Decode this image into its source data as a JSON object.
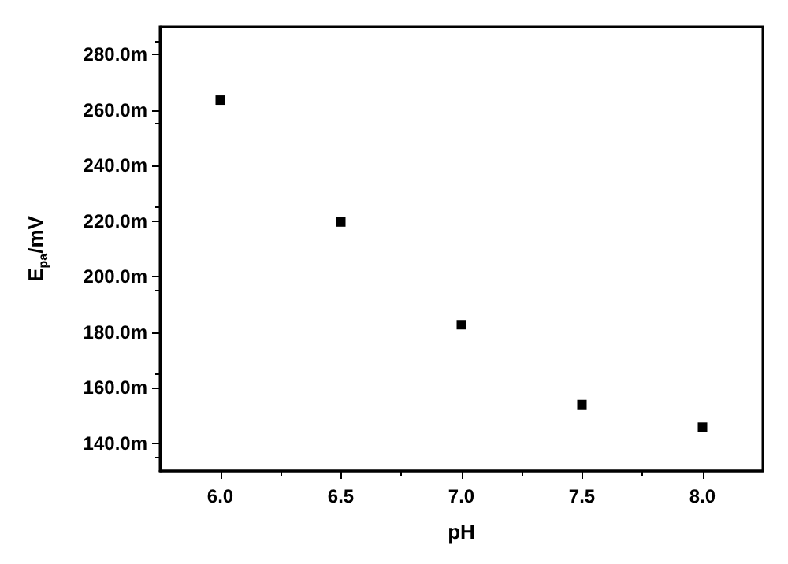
{
  "chart_data": {
    "type": "scatter",
    "xlabel": "pH",
    "ylabel": "E$_{pa}$/mV",
    "x": [
      6.0,
      6.5,
      7.0,
      7.5,
      8.0
    ],
    "values": [
      263.6,
      219.7,
      182.7,
      153.9,
      145.8
    ],
    "color": "#000000",
    "marker": "square",
    "grid": false,
    "xlim": [
      5.75,
      8.25
    ],
    "xticks": [
      {
        "value": 6,
        "label": "6.0"
      },
      {
        "value": 6.5,
        "label": "6.5"
      },
      {
        "value": 7,
        "label": "7.0"
      },
      {
        "value": 7.5,
        "label": "7.5"
      },
      {
        "value": 8,
        "label": "8.0"
      }
    ],
    "ylim": [
      130,
      290
    ],
    "yticks": [
      {
        "value": 140,
        "label": "140.0m"
      },
      {
        "value": 160,
        "label": "160.0m"
      },
      {
        "value": 180,
        "label": "180.0m"
      },
      {
        "value": 200,
        "label": "200.0m"
      },
      {
        "value": 220,
        "label": "220.0m"
      },
      {
        "value": 240,
        "label": "240.0m"
      },
      {
        "value": 260,
        "label": "260.0m"
      },
      {
        "value": 280,
        "label": "280.0m"
      }
    ]
  }
}
